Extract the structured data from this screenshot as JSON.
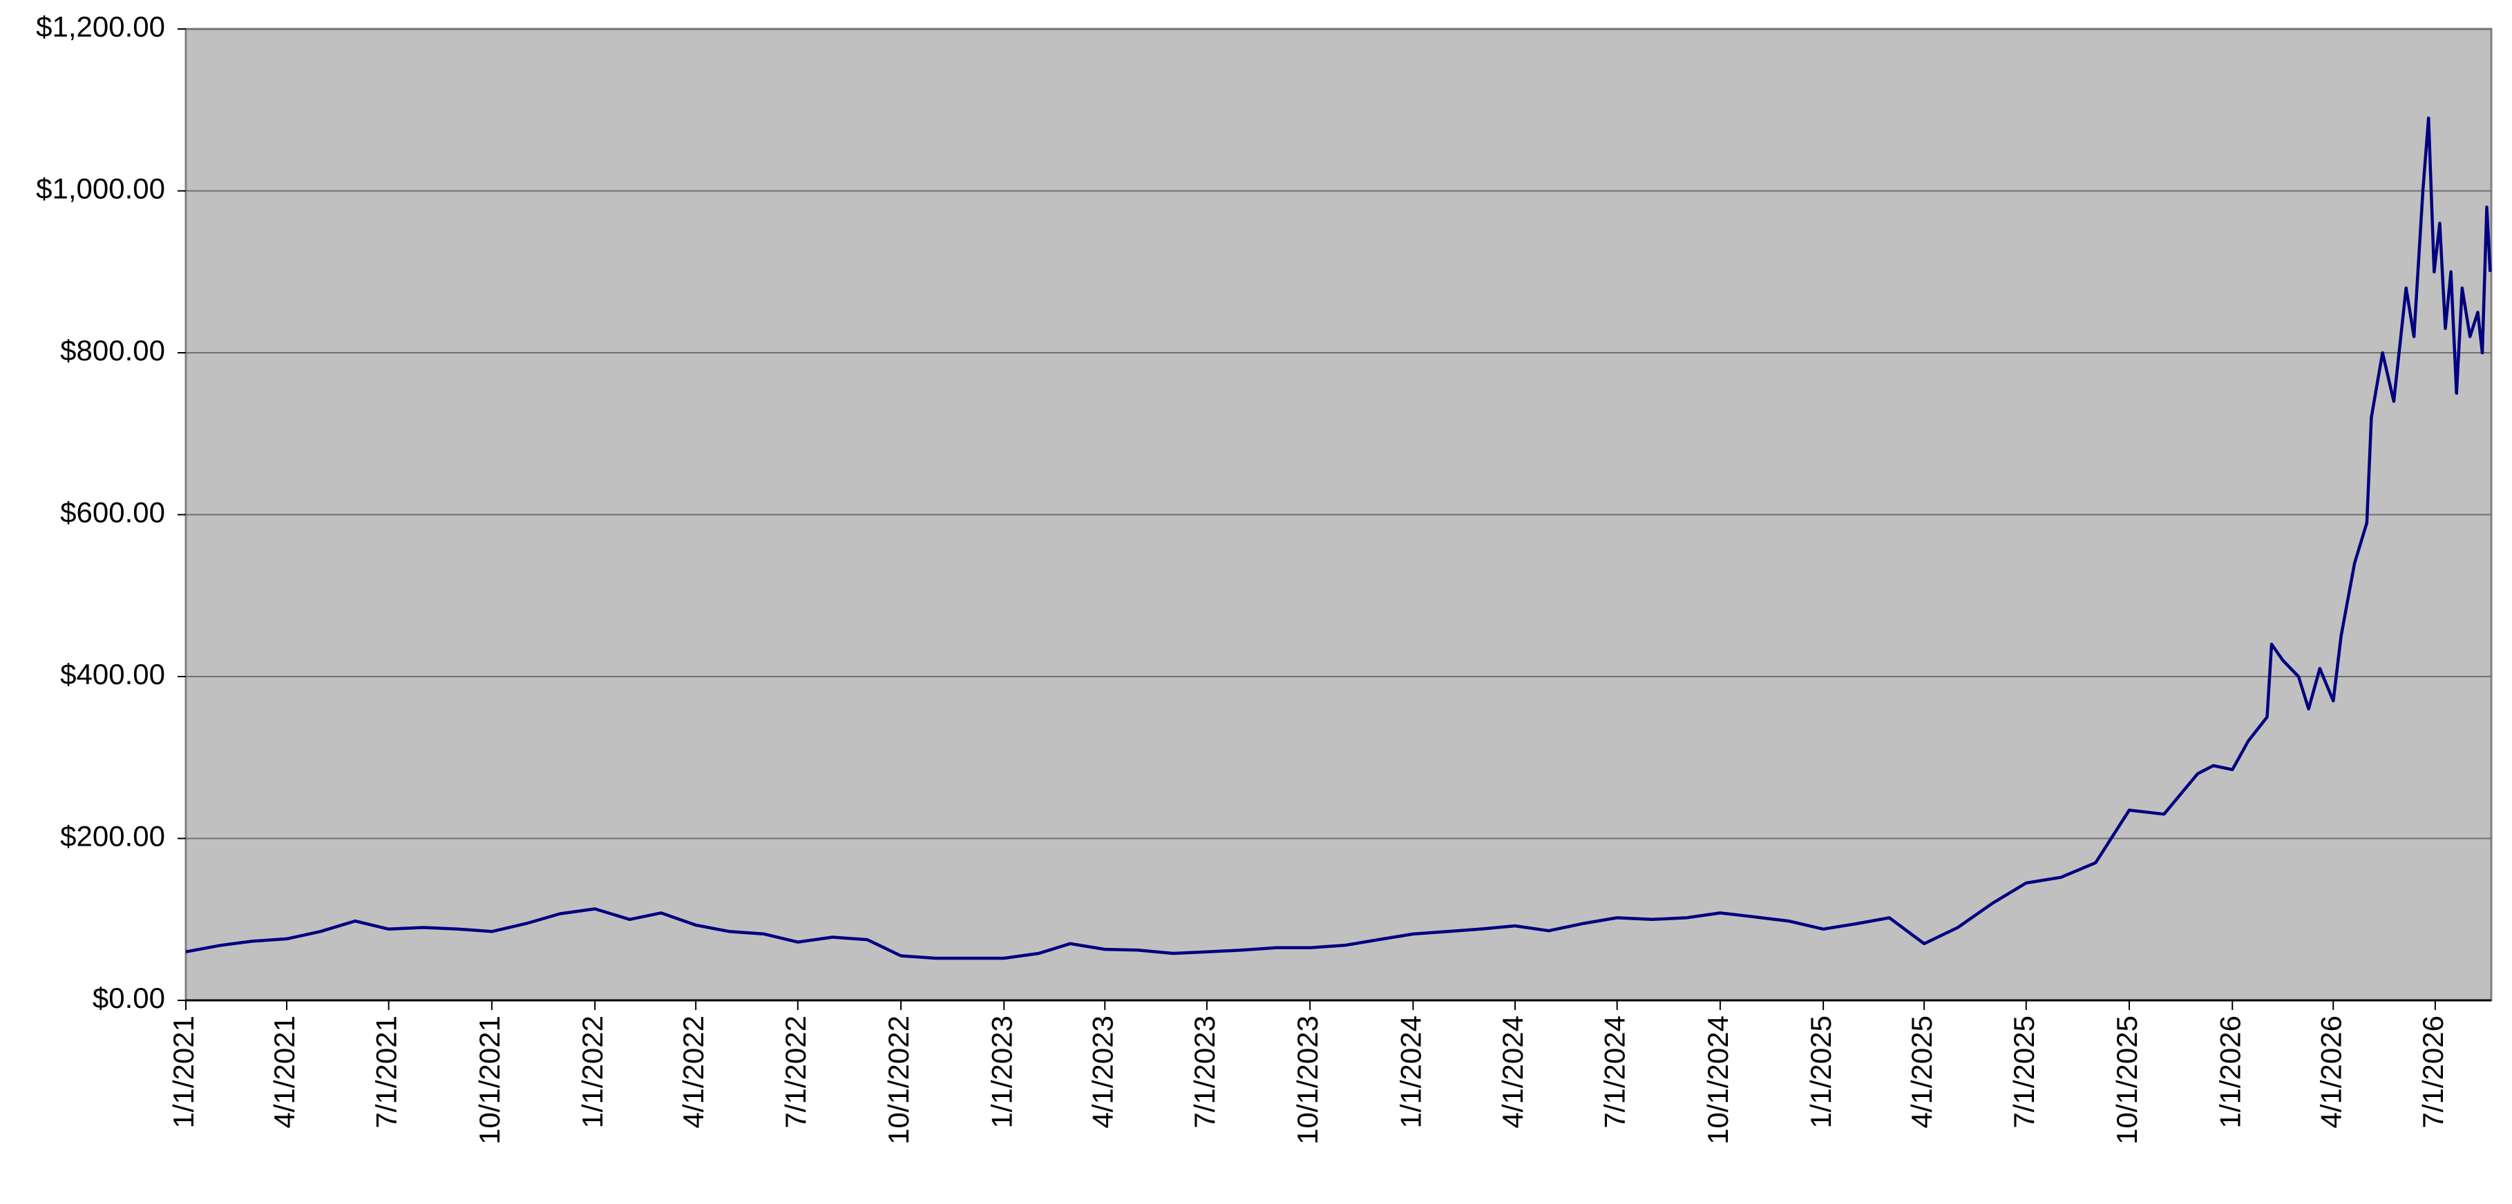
{
  "chart_data": {
    "type": "line",
    "color": "#000080",
    "background": "#c0c0c0",
    "grid": true,
    "x": [
      "1/1/2021",
      "2/1/2021",
      "3/1/2021",
      "4/1/2021",
      "5/1/2021",
      "6/1/2021",
      "7/1/2021",
      "8/1/2021",
      "9/1/2021",
      "10/1/2021",
      "11/1/2021",
      "12/1/2021",
      "1/1/2022",
      "2/1/2022",
      "3/1/2022",
      "4/1/2022",
      "5/1/2022",
      "6/1/2022",
      "7/1/2022",
      "8/1/2022",
      "9/1/2022",
      "10/1/2022",
      "11/1/2022",
      "12/1/2022",
      "1/1/2023",
      "2/1/2023",
      "3/1/2023",
      "4/1/2023",
      "5/1/2023",
      "6/1/2023",
      "7/1/2023",
      "8/1/2023",
      "9/1/2023",
      "10/1/2023",
      "11/1/2023",
      "12/1/2023",
      "1/1/2024",
      "2/1/2024",
      "3/1/2024",
      "4/1/2024",
      "5/1/2024",
      "6/1/2024",
      "7/1/2024",
      "8/1/2024",
      "9/1/2024",
      "10/1/2024",
      "11/1/2024",
      "12/1/2024",
      "1/1/2025",
      "2/1/2025",
      "3/1/2025",
      "4/1/2025",
      "5/1/2025",
      "6/1/2025",
      "7/1/2025",
      "8/1/2025",
      "9/1/2025",
      "10/1/2025",
      "11/1/2025",
      "12/1/2025",
      "12/15/2025",
      "1/1/2026",
      "1/15/2026",
      "2/1/2026",
      "2/5/2026",
      "2/15/2026",
      "3/1/2026",
      "3/10/2026",
      "3/20/2026",
      "4/1/2026",
      "4/8/2026",
      "4/20/2026",
      "5/1/2026",
      "5/5/2026",
      "5/15/2026",
      "5/25/2026",
      "6/5/2026",
      "6/12/2026",
      "6/20/2026",
      "6/25/2026",
      "6/30/2026",
      "7/5/2026",
      "7/10/2026",
      "7/15/2026",
      "7/20/2026",
      "7/25/2026",
      "8/1/2026",
      "8/8/2026",
      "8/12/2026",
      "8/16/2026",
      "8/19/2026"
    ],
    "values": [
      60,
      68,
      73,
      76,
      85,
      98,
      88,
      90,
      88,
      85,
      95,
      107,
      113,
      100,
      108,
      93,
      85,
      82,
      72,
      78,
      75,
      55,
      52,
      52,
      52,
      58,
      70,
      63,
      62,
      58,
      60,
      62,
      65,
      65,
      68,
      75,
      82,
      85,
      88,
      92,
      86,
      95,
      102,
      100,
      102,
      108,
      103,
      98,
      88,
      95,
      102,
      70,
      90,
      120,
      145,
      152,
      170,
      235,
      230,
      280,
      290,
      285,
      320,
      350,
      440,
      420,
      400,
      360,
      410,
      370,
      450,
      540,
      590,
      720,
      800,
      740,
      880,
      820,
      1000,
      1090,
      900,
      960,
      830,
      900,
      750,
      880,
      820,
      850,
      800,
      980,
      900
    ],
    "xlim": [
      "1/1/2021",
      "8/20/2026"
    ],
    "xticks": [
      "1/1/2021",
      "4/1/2021",
      "7/1/2021",
      "10/1/2021",
      "1/1/2022",
      "4/1/2022",
      "7/1/2022",
      "10/1/2022",
      "1/1/2023",
      "4/1/2023",
      "7/1/2023",
      "10/1/2023",
      "1/1/2024",
      "4/1/2024",
      "7/1/2024",
      "10/1/2024",
      "1/1/2025",
      "4/1/2025",
      "7/1/2025",
      "10/1/2025",
      "1/1/2026",
      "4/1/2026",
      "7/1/2026"
    ],
    "ylim": [
      0,
      1200
    ],
    "yticks": [
      {
        "value": 0,
        "label": "$0.00"
      },
      {
        "value": 200,
        "label": "$200.00"
      },
      {
        "value": 400,
        "label": "$400.00"
      },
      {
        "value": 600,
        "label": "$600.00"
      },
      {
        "value": 800,
        "label": "$800.00"
      },
      {
        "value": 1000,
        "label": "$1,000.00"
      },
      {
        "value": 1200,
        "label": "$1,200.00"
      }
    ]
  }
}
